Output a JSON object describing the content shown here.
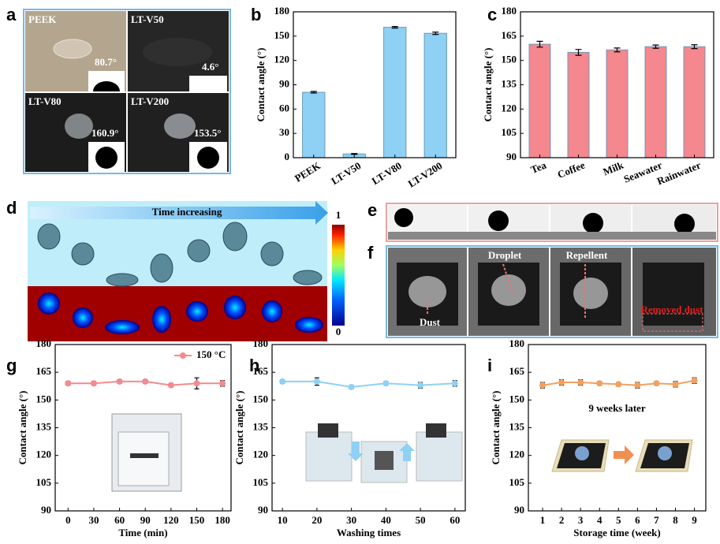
{
  "panel_letters": [
    "a",
    "b",
    "c",
    "d",
    "e",
    "f",
    "g",
    "h",
    "i"
  ],
  "panel_a": [
    {
      "name": "PEEK",
      "angle": "80.7°"
    },
    {
      "name": "LT-V50",
      "angle": "4.6°"
    },
    {
      "name": "LT-V80",
      "angle": "160.9°"
    },
    {
      "name": "LT-V200",
      "angle": "153.5°"
    }
  ],
  "panel_d": {
    "arrow_label": "Time increasing",
    "colorbar_max": "1",
    "colorbar_min": "0"
  },
  "panel_f": {
    "labels": [
      "Droplet",
      "Repellent",
      "Dust",
      "Removed dust"
    ]
  },
  "chart_data": [
    {
      "type": "bar",
      "ylabel": "Contact angle (°)",
      "categories": [
        "PEEK",
        "LT-V50",
        "LT-V80",
        "LT-V200"
      ],
      "values": [
        80.7,
        4.6,
        160.9,
        153.5
      ],
      "errors": [
        1,
        0.5,
        1,
        1.5
      ],
      "color": "#8fd0f5",
      "ylim": [
        0,
        180
      ],
      "yticks": [
        0,
        30,
        60,
        90,
        120,
        150,
        180
      ]
    },
    {
      "type": "bar",
      "ylabel": "Contact angle (°)",
      "categories": [
        "Tea",
        "Coffee",
        "Milk",
        "Seawater",
        "Rainwater"
      ],
      "values": [
        160,
        155,
        156.5,
        158.5,
        158.5
      ],
      "errors": [
        1.8,
        1.8,
        1.2,
        1,
        1.2
      ],
      "color": "#f5878e",
      "ylim": [
        90,
        180
      ],
      "yticks": [
        90,
        105,
        120,
        135,
        150,
        165,
        180
      ]
    },
    {
      "type": "line",
      "ylabel": "Contact angle (°)",
      "xlabel": "Time (min)",
      "x": [
        0,
        30,
        60,
        90,
        120,
        150,
        180
      ],
      "series": [
        {
          "name": "150 °C",
          "color": "#f28a8f",
          "values": [
            159,
            159,
            160,
            160,
            158,
            159,
            159
          ],
          "errors": [
            1,
            1,
            1,
            1,
            1,
            3,
            1.5
          ]
        }
      ],
      "xlim": [
        -15,
        190
      ],
      "xticks": [
        0,
        30,
        60,
        90,
        120,
        150,
        180
      ],
      "ylim": [
        90,
        180
      ],
      "yticks": [
        90,
        105,
        120,
        135,
        150,
        165,
        180
      ]
    },
    {
      "type": "line",
      "ylabel": "Contact angle (°)",
      "xlabel": "Washing times",
      "x": [
        10,
        20,
        30,
        40,
        50,
        60
      ],
      "values": [
        160,
        160,
        157,
        159,
        158,
        159
      ],
      "errors": [
        1,
        2,
        1,
        1,
        1.5,
        1.5
      ],
      "color": "#8fd0f5",
      "xlim": [
        7,
        63
      ],
      "xticks": [
        10,
        20,
        30,
        40,
        50,
        60
      ],
      "ylim": [
        90,
        180
      ],
      "yticks": [
        90,
        105,
        120,
        135,
        150,
        165,
        180
      ]
    },
    {
      "type": "line",
      "ylabel": "Contact angle (°)",
      "xlabel": "Storage time (week)",
      "annotation": "9 weeks later",
      "x": [
        1,
        2,
        3,
        4,
        5,
        6,
        7,
        8,
        9
      ],
      "values": [
        158,
        159.5,
        159.5,
        159,
        158.5,
        158,
        159,
        158.5,
        160.5
      ],
      "errors": [
        1.5,
        1.5,
        1.5,
        1,
        1,
        1.5,
        1,
        1.5,
        1.5
      ],
      "color": "#f2a060",
      "xlim": [
        0.25,
        9.6
      ],
      "xticks": [
        1,
        2,
        3,
        4,
        5,
        6,
        7,
        8,
        9
      ],
      "ylim": [
        90,
        180
      ],
      "yticks": [
        90,
        105,
        120,
        135,
        150,
        165,
        180
      ]
    }
  ]
}
